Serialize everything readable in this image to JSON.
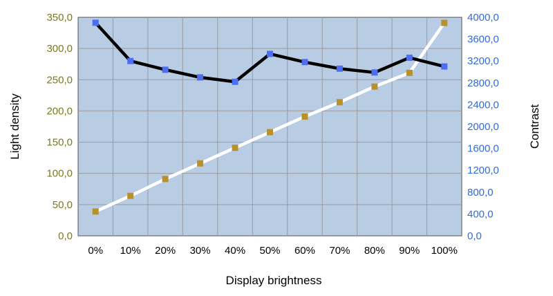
{
  "chart_data": {
    "type": "line",
    "xlabel": "Display brightness",
    "ylabel_left": "Light density",
    "ylabel_right": "Contrast",
    "categories": [
      "0%",
      "10%",
      "20%",
      "30%",
      "40%",
      "50%",
      "60%",
      "70%",
      "80%",
      "90%",
      "100%"
    ],
    "ylim_left": [
      0,
      350
    ],
    "yticks_left": [
      "0,0",
      "50,0",
      "100,0",
      "150,0",
      "200,0",
      "250,0",
      "300,0",
      "350,0"
    ],
    "ylim_right": [
      0,
      4000
    ],
    "yticks_right": [
      "0,0",
      "400,0",
      "800,0",
      "1200,0",
      "1600,0",
      "2000,0",
      "2400,0",
      "2800,0",
      "3200,0",
      "3600,0",
      "4000,0"
    ],
    "series": [
      {
        "axis": "left",
        "values": [
          39,
          64,
          91,
          116,
          141,
          166,
          191,
          214,
          239,
          261,
          341
        ],
        "line_color": "#ffffff",
        "marker_color": "#b8912a"
      },
      {
        "axis": "right",
        "values": [
          3900,
          3200,
          3040,
          2900,
          2820,
          3330,
          3180,
          3060,
          2990,
          3260,
          3100
        ],
        "line_color": "#000000",
        "marker_color": "#4f6df0"
      }
    ],
    "grid": true,
    "plot_background": "#b8cce4",
    "legend": "none"
  }
}
